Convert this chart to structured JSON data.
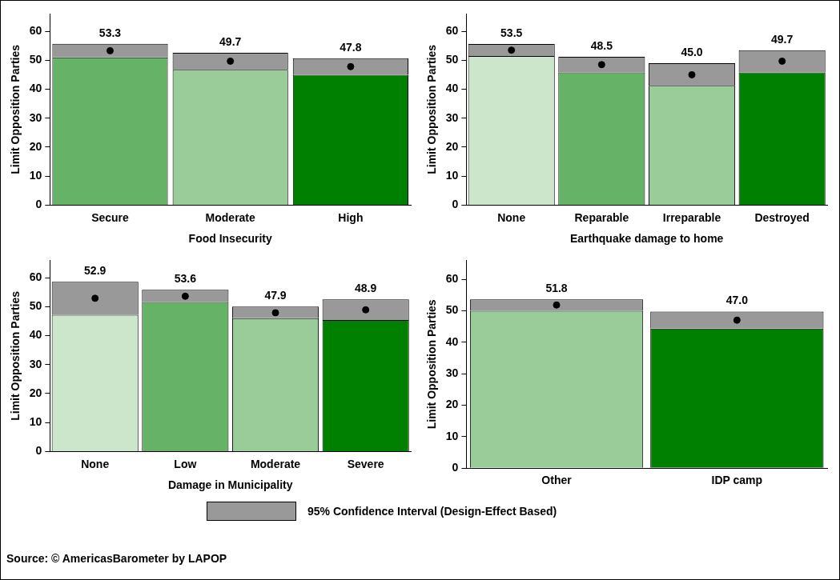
{
  "chart_data": [
    {
      "type": "bar",
      "stacked": true,
      "categories": [
        "Secure",
        "Moderate",
        "High"
      ],
      "xlabel": "Food Insecurity",
      "ylabel": "Limit Opposition Parties",
      "ylim": [
        0,
        66
      ],
      "yticks": [
        0,
        10,
        20,
        30,
        40,
        50,
        60
      ],
      "grid": false,
      "series": [
        {
          "colors": [
            "#66b266",
            "#99cc99",
            "#008000"
          ],
          "values": [
            51.0,
            46.7,
            45.0
          ]
        },
        {
          "color": "#999999",
          "values": [
            4.7,
            5.9,
            5.7
          ]
        },
        {
          "type": "scatter",
          "color": "#000000",
          "marker": "circle",
          "x": [
            "Secure",
            "Moderate",
            "High"
          ],
          "values": [
            53.3,
            49.7,
            47.8
          ],
          "value_labels": [
            "53.3",
            "49.7",
            "47.8"
          ]
        }
      ]
    },
    {
      "type": "bar",
      "stacked": true,
      "categories": [
        "None",
        "Reparable",
        "Irreparable",
        "Destroyed"
      ],
      "xlabel": "Earthquake damage to home",
      "ylabel": "Limit Opposition Parties",
      "ylim": [
        0,
        66
      ],
      "yticks": [
        0,
        10,
        20,
        30,
        40,
        50,
        60
      ],
      "grid": false,
      "series": [
        {
          "colors": [
            "#cce6cc",
            "#66b266",
            "#99cc99",
            "#008000"
          ],
          "values": [
            51.5,
            45.8,
            41.2,
            45.8
          ]
        },
        {
          "color": "#999999",
          "values": [
            4.1,
            5.4,
            7.8,
            7.7
          ]
        },
        {
          "type": "scatter",
          "color": "#000000",
          "marker": "circle",
          "x": [
            "None",
            "Reparable",
            "Irreparable",
            "Destroyed"
          ],
          "values": [
            53.5,
            48.5,
            45.0,
            49.7
          ],
          "value_labels": [
            "53.5",
            "48.5",
            "45.0",
            "49.7"
          ]
        }
      ]
    },
    {
      "type": "bar",
      "stacked": true,
      "categories": [
        "None",
        "Low",
        "Moderate",
        "Severe"
      ],
      "xlabel": "Damage in Municipality",
      "ylabel": "Limit Opposition Parties",
      "ylim": [
        0,
        66
      ],
      "yticks": [
        0,
        10,
        20,
        30,
        40,
        50,
        60
      ],
      "grid": false,
      "series": [
        {
          "colors": [
            "#cce6cc",
            "#66b266",
            "#99cc99",
            "#008000"
          ],
          "values": [
            47.2,
            51.6,
            46.0,
            45.4
          ]
        },
        {
          "color": "#999999",
          "values": [
            11.4,
            4.2,
            4.0,
            7.1
          ]
        },
        {
          "type": "scatter",
          "color": "#000000",
          "marker": "circle",
          "x": [
            "None",
            "Low",
            "Moderate",
            "Severe"
          ],
          "values": [
            52.9,
            53.6,
            47.9,
            48.9
          ],
          "value_labels": [
            "52.9",
            "53.6",
            "47.9",
            "48.9"
          ]
        }
      ]
    },
    {
      "type": "bar",
      "stacked": true,
      "categories": [
        "Other",
        "IDP camp"
      ],
      "ylabel": "Limit Opposition Parties",
      "ylim": [
        0,
        66
      ],
      "yticks": [
        0,
        10,
        20,
        30,
        40,
        50,
        60
      ],
      "grid": false,
      "legend": "bottom",
      "annotations": [
        "Source: © AmericasBarometer by LAPOP"
      ],
      "series": [
        {
          "colors": [
            "#99cc99",
            "#008000"
          ],
          "values": [
            50.0,
            44.3
          ]
        },
        {
          "name": "95% Confidence Interval (Design-Effect Based)",
          "color": "#999999",
          "values": [
            3.6,
            5.4
          ]
        },
        {
          "type": "scatter",
          "color": "#000000",
          "marker": "circle",
          "x": [
            "Other",
            "IDP camp"
          ],
          "values": [
            51.8,
            47.0
          ],
          "value_labels": [
            "51.8",
            "47.0"
          ]
        }
      ]
    }
  ]
}
